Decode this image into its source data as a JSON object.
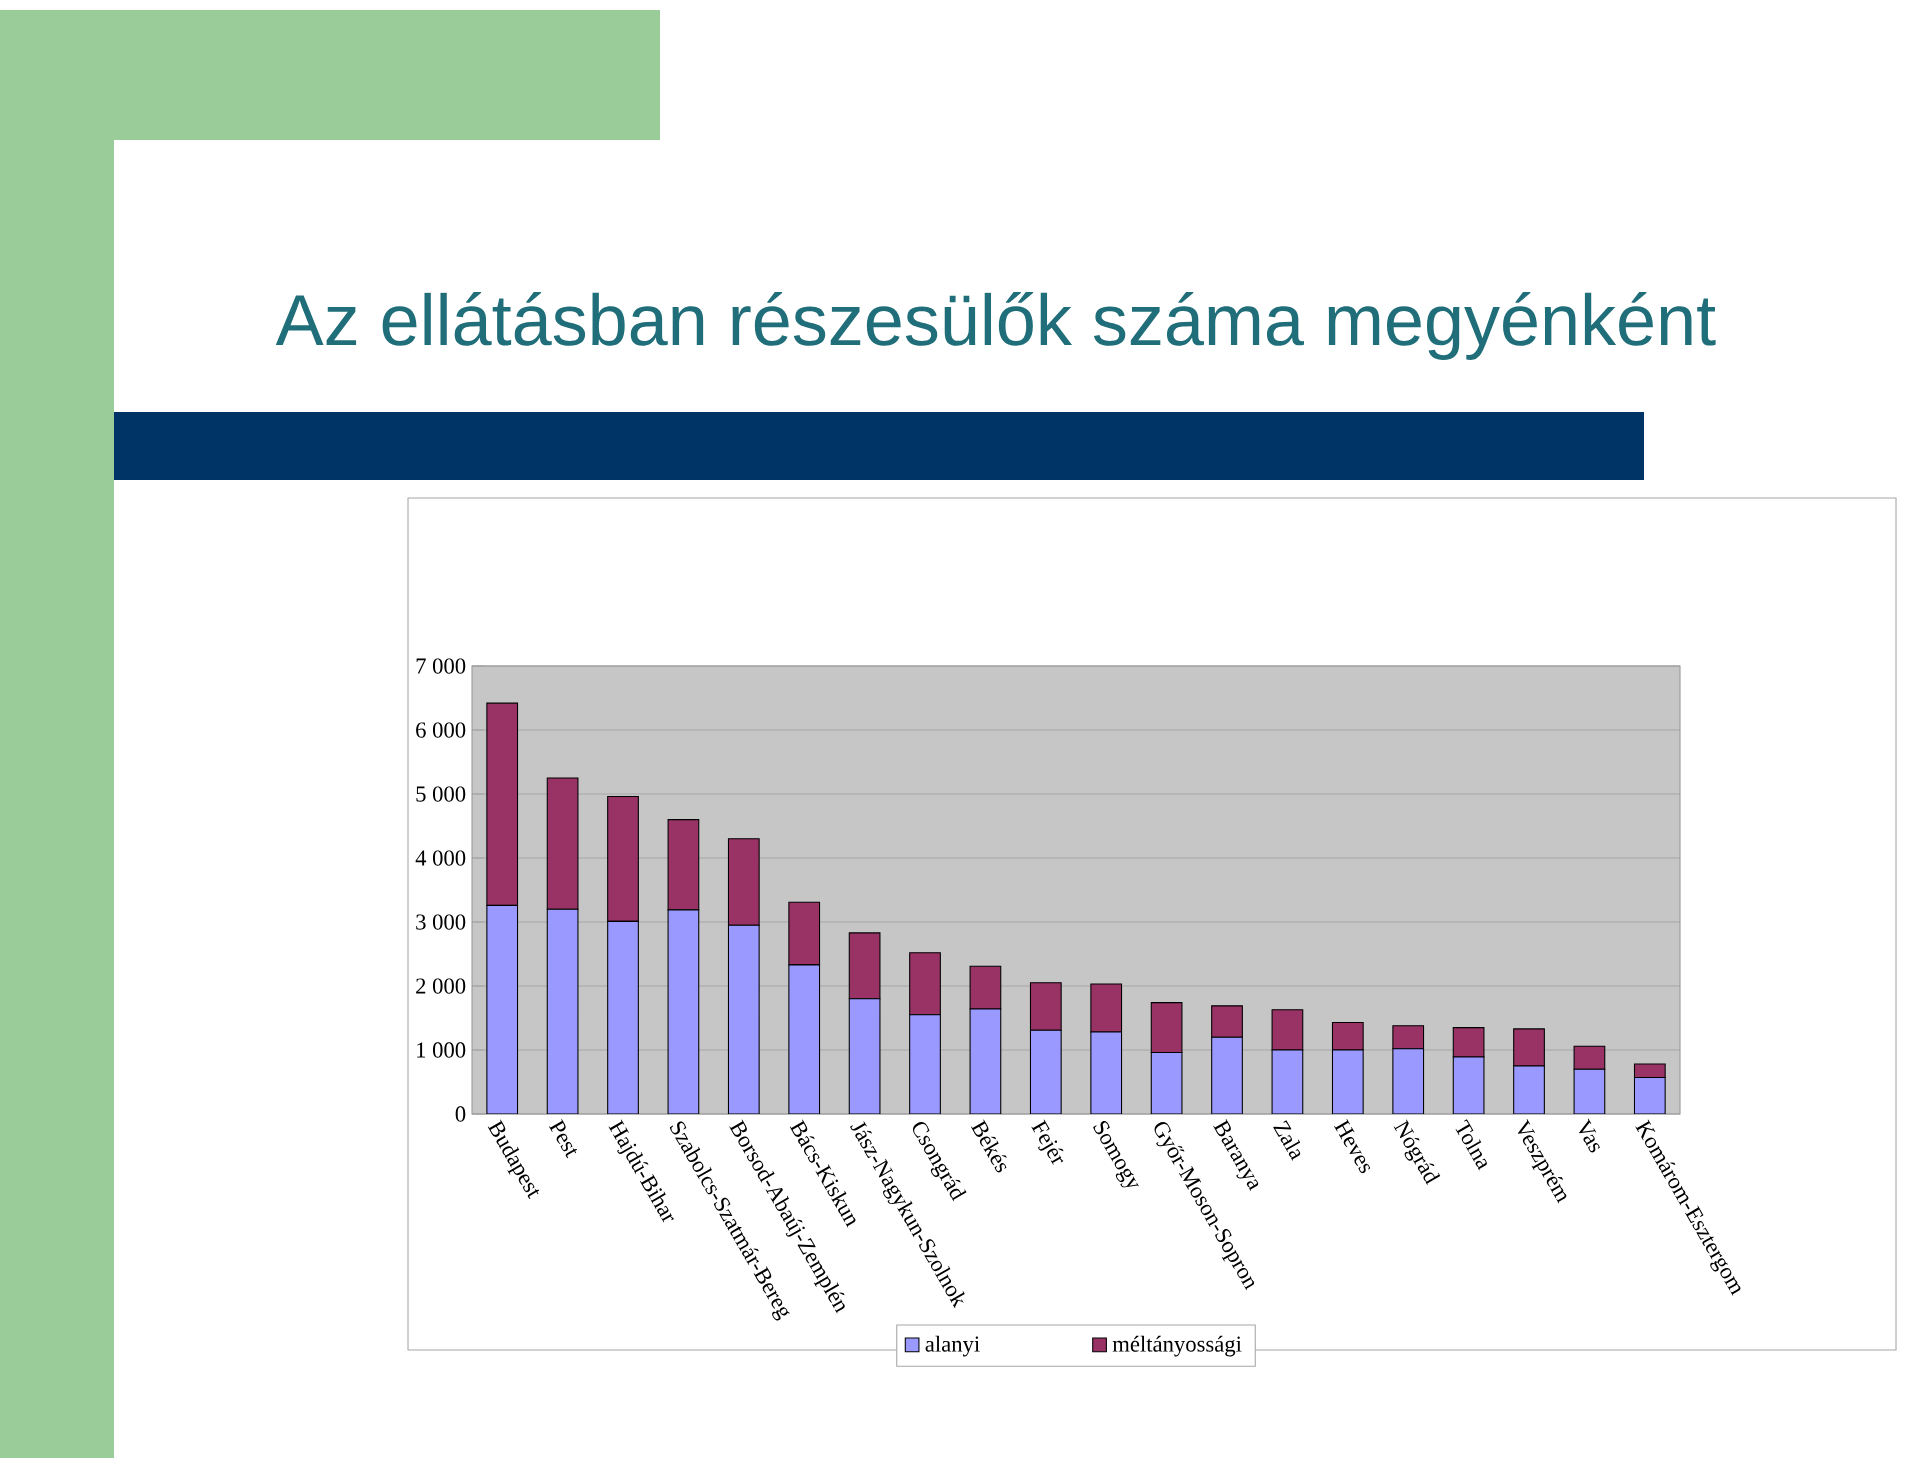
{
  "chart_data": {
    "type": "bar",
    "title": "Az ellátásban részesülők száma megyénként",
    "categories": [
      "Budapest",
      "Pest",
      "Hajdú-Bihar",
      "Szabolcs-Szatmár-Bereg",
      "Borsod-Abaúj-Zemplén",
      "Bács-Kiskun",
      "Jász-Nagykun-Szolnok",
      "Csongrád",
      "Békés",
      "Fejér",
      "Somogy",
      "Győr-Moson-Sopron",
      "Baranya",
      "Zala",
      "Heves",
      "Nógrád",
      "Tolna",
      "Veszprém",
      "Vas",
      "Komárom-Esztergom"
    ],
    "series": [
      {
        "name": "alanyi",
        "color": "#9999ff",
        "values": [
          3260,
          3200,
          3010,
          3190,
          2950,
          2330,
          1800,
          1550,
          1640,
          1310,
          1280,
          960,
          1200,
          1000,
          1000,
          1020,
          890,
          750,
          700,
          570
        ]
      },
      {
        "name": "méltányossági",
        "color": "#993366",
        "values": [
          3160,
          2050,
          1950,
          1410,
          1350,
          980,
          1030,
          970,
          670,
          740,
          750,
          780,
          490,
          630,
          430,
          360,
          460,
          580,
          360,
          210
        ]
      }
    ],
    "stacked": true,
    "ylim": [
      0,
      7000
    ],
    "yticks": [
      0,
      {
        "value": 1000,
        "label": "1 000"
      },
      {
        "value": 2000,
        "label": "2 000"
      },
      {
        "value": 3000,
        "label": "3 000"
      },
      {
        "value": 4000,
        "label": "4 000"
      },
      {
        "value": 5000,
        "label": "5 000"
      },
      {
        "value": 6000,
        "label": "6 000"
      },
      {
        "value": 7000,
        "label": "7 000"
      }
    ],
    "grid": "y",
    "legend": "bottom"
  }
}
